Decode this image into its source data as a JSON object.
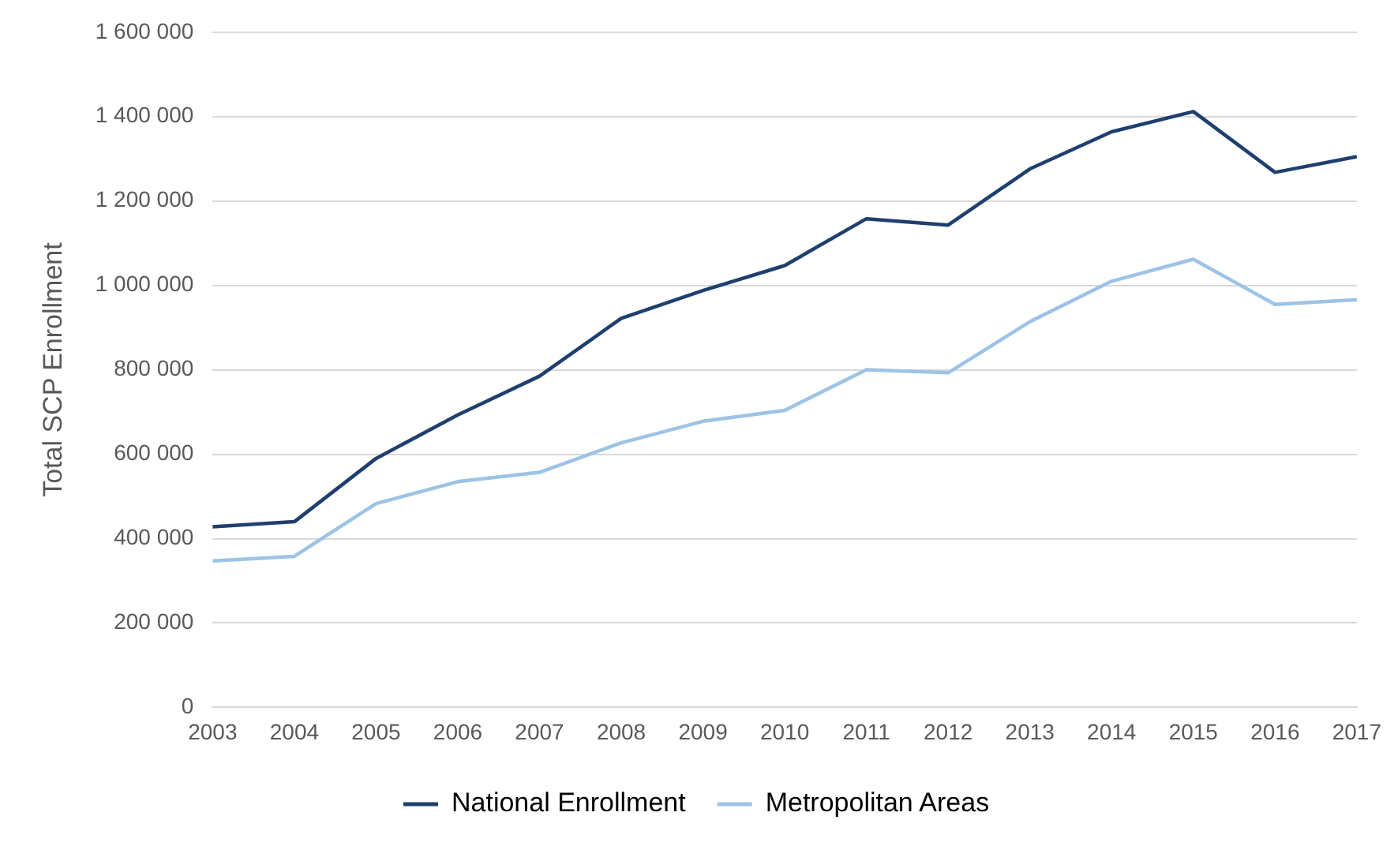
{
  "chart_data": {
    "type": "line",
    "ylabel": "Total SCP Enrollment",
    "categories": [
      "2003",
      "2004",
      "2005",
      "2006",
      "2007",
      "2008",
      "2009",
      "2010",
      "2011",
      "2012",
      "2013",
      "2014",
      "2015",
      "2016",
      "2017"
    ],
    "series": [
      {
        "name": "National Enrollment",
        "color": "#1f3f6e",
        "values": [
          428000,
          440000,
          590000,
          693000,
          785000,
          922000,
          988000,
          1047000,
          1158000,
          1143000,
          1276000,
          1364000,
          1412000,
          1268000,
          1305000
        ]
      },
      {
        "name": "Metropolitan Areas",
        "color": "#9dc3e6",
        "values": [
          347000,
          358000,
          483000,
          535000,
          557000,
          627000,
          678000,
          704000,
          800000,
          793000,
          914000,
          1010000,
          1062000,
          955000,
          966000
        ]
      }
    ],
    "ylim": [
      0,
      1600000
    ],
    "yticks": [
      0,
      {
        "value": 200000,
        "label": "200 000"
      },
      {
        "value": 400000,
        "label": "400 000"
      },
      {
        "value": 600000,
        "label": "600 000"
      },
      {
        "value": 800000,
        "label": "800 000"
      },
      {
        "value": 1000000,
        "label": "1 000 000"
      },
      {
        "value": 1200000,
        "label": "1 200 000"
      },
      {
        "value": 1400000,
        "label": "1 400 000"
      },
      {
        "value": 1600000,
        "label": "1 600 000"
      }
    ],
    "grid": "y",
    "legend": "bottom",
    "marker": "none",
    "line_style": "solid"
  }
}
